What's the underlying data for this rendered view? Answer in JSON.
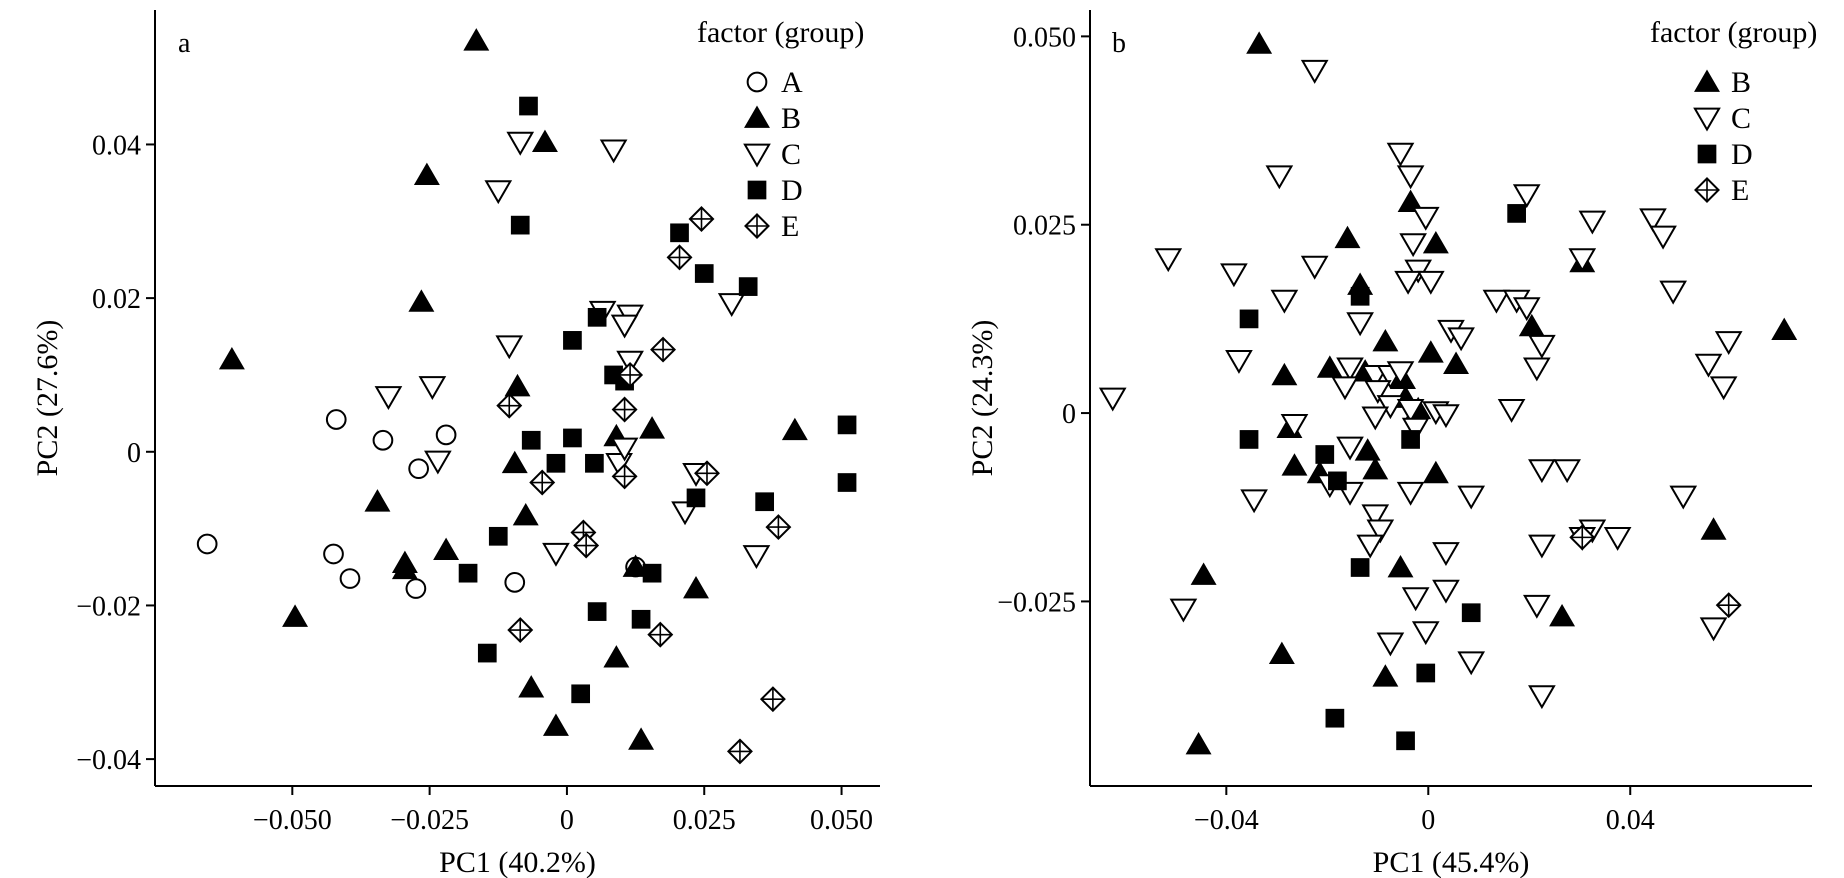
{
  "chart_data": [
    {
      "type": "scatter",
      "panel_tag": "a",
      "xlabel": "PC1 (40.2%)",
      "ylabel": "PC2 (27.6%)",
      "xlim": [
        -0.075,
        0.057
      ],
      "ylim": [
        -0.0435,
        0.0575
      ],
      "xticks": [
        -0.05,
        -0.025,
        0,
        0.025,
        0.05
      ],
      "xtick_labels": [
        "−0.050",
        "−0.025",
        "0",
        "0.025",
        "0.050"
      ],
      "yticks": [
        -0.04,
        -0.02,
        0,
        0.02,
        0.04
      ],
      "ytick_labels": [
        "−0.04",
        "−0.02",
        "0",
        "0.02",
        "0.04"
      ],
      "grid": false,
      "legend": {
        "title": "factor (group)",
        "placement": "top-right"
      },
      "series": [
        {
          "name": "A",
          "marker": "open-circle",
          "points": [
            [
              -0.0655,
              -0.012
            ],
            [
              -0.042,
              0.0042
            ],
            [
              -0.0335,
              0.0015
            ],
            [
              -0.022,
              0.0022
            ],
            [
              -0.027,
              -0.0022
            ],
            [
              -0.0425,
              -0.0133
            ],
            [
              -0.0395,
              -0.0165
            ],
            [
              -0.0275,
              -0.0178
            ],
            [
              -0.0095,
              -0.017
            ],
            [
              0.0125,
              -0.015
            ]
          ]
        },
        {
          "name": "B",
          "marker": "filled-triangle-up",
          "points": [
            [
              -0.0165,
              0.0535
            ],
            [
              -0.004,
              0.0403
            ],
            [
              -0.0255,
              0.036
            ],
            [
              -0.0265,
              0.0195
            ],
            [
              -0.061,
              0.012
            ],
            [
              -0.009,
              0.0085
            ],
            [
              -0.0095,
              -0.0015
            ],
            [
              -0.0345,
              -0.0065
            ],
            [
              -0.0075,
              -0.0083
            ],
            [
              -0.0295,
              -0.0145
            ],
            [
              -0.022,
              -0.0128
            ],
            [
              -0.0295,
              -0.0153
            ],
            [
              -0.0495,
              -0.0215
            ],
            [
              -0.0065,
              -0.0307
            ],
            [
              -0.002,
              -0.0357
            ],
            [
              0.009,
              0.002
            ],
            [
              0.0155,
              0.003
            ],
            [
              0.0415,
              0.0028
            ],
            [
              0.0125,
              -0.015
            ],
            [
              0.0235,
              -0.0178
            ],
            [
              0.009,
              -0.0268
            ],
            [
              0.0135,
              -0.0375
            ]
          ]
        },
        {
          "name": "C",
          "marker": "open-triangle-down",
          "points": [
            [
              -0.0085,
              0.0403
            ],
            [
              0.0085,
              0.0393
            ],
            [
              -0.0125,
              0.034
            ],
            [
              -0.0325,
              0.0072
            ],
            [
              -0.0245,
              0.0085
            ],
            [
              -0.0105,
              0.0138
            ],
            [
              0.0065,
              0.0183
            ],
            [
              0.0115,
              0.0178
            ],
            [
              0.0105,
              0.0165
            ],
            [
              0.0115,
              0.0118
            ],
            [
              0.03,
              0.0193
            ],
            [
              -0.0235,
              -0.0012
            ],
            [
              0.0095,
              -0.0015
            ],
            [
              0.0105,
              0.0005
            ],
            [
              -0.002,
              -0.0132
            ],
            [
              0.0215,
              -0.0078
            ],
            [
              0.0235,
              -0.0028
            ],
            [
              0.0345,
              -0.0135
            ]
          ]
        },
        {
          "name": "D",
          "marker": "filled-square",
          "points": [
            [
              -0.007,
              0.045
            ],
            [
              -0.0085,
              0.0295
            ],
            [
              0.0205,
              0.0285
            ],
            [
              0.025,
              0.0232
            ],
            [
              0.033,
              0.0215
            ],
            [
              0.0055,
              0.0175
            ],
            [
              0.001,
              0.0145
            ],
            [
              0.0085,
              0.01
            ],
            [
              0.0105,
              0.0092
            ],
            [
              -0.0065,
              0.0015
            ],
            [
              0.001,
              0.0018
            ],
            [
              -0.002,
              -0.0015
            ],
            [
              0.005,
              -0.0015
            ],
            [
              -0.0125,
              -0.011
            ],
            [
              0.0235,
              -0.006
            ],
            [
              0.036,
              -0.0065
            ],
            [
              0.051,
              0.0035
            ],
            [
              0.051,
              -0.004
            ],
            [
              -0.018,
              -0.0158
            ],
            [
              0.0155,
              -0.0158
            ],
            [
              0.0055,
              -0.0208
            ],
            [
              0.0135,
              -0.0218
            ],
            [
              -0.0145,
              -0.0262
            ],
            [
              0.0025,
              -0.0315
            ]
          ]
        },
        {
          "name": "E",
          "marker": "crossed-diamond",
          "points": [
            [
              0.0245,
              0.0303
            ],
            [
              0.0205,
              0.0253
            ],
            [
              0.0175,
              0.0133
            ],
            [
              0.0115,
              0.01
            ],
            [
              -0.0105,
              0.006
            ],
            [
              0.0105,
              0.0055
            ],
            [
              -0.0045,
              -0.004
            ],
            [
              0.0105,
              -0.0032
            ],
            [
              0.0255,
              -0.0028
            ],
            [
              0.003,
              -0.0105
            ],
            [
              0.0035,
              -0.0122
            ],
            [
              0.0385,
              -0.0098
            ],
            [
              -0.0085,
              -0.0232
            ],
            [
              0.017,
              -0.0238
            ],
            [
              0.0375,
              -0.0322
            ],
            [
              0.0315,
              -0.039
            ]
          ]
        }
      ]
    },
    {
      "type": "scatter",
      "panel_tag": "b",
      "xlabel": "PC1 (45.4%)",
      "ylabel": "PC2 (24.3%)",
      "xlim": [
        -0.067,
        0.076
      ],
      "ylim": [
        -0.0495,
        0.0535
      ],
      "xticks": [
        -0.04,
        0,
        0.04
      ],
      "xtick_labels": [
        "−0.04",
        "0",
        "0.04"
      ],
      "yticks": [
        -0.025,
        0,
        0.025,
        0.05
      ],
      "ytick_labels": [
        "−0.025",
        "0",
        "0.025",
        "0.050"
      ],
      "grid": false,
      "legend": {
        "title": "factor (group)",
        "placement": "top-right"
      },
      "series": [
        {
          "name": "B",
          "marker": "filled-triangle-up",
          "points": [
            [
              -0.0335,
              0.049
            ],
            [
              -0.016,
              0.0232
            ],
            [
              -0.0135,
              0.017
            ],
            [
              -0.0035,
              0.028
            ],
            [
              0.0015,
              0.0225
            ],
            [
              0.0305,
              0.02
            ],
            [
              0.0205,
              0.0115
            ],
            [
              0.0705,
              0.011
            ],
            [
              -0.0285,
              0.005
            ],
            [
              -0.0195,
              0.006
            ],
            [
              -0.0085,
              0.0095
            ],
            [
              -0.0125,
              0.0055
            ],
            [
              -0.005,
              0.0045
            ],
            [
              0.0005,
              0.008
            ],
            [
              0.0055,
              0.0065
            ],
            [
              -0.0045,
              0.002
            ],
            [
              -0.002,
              0.0005
            ],
            [
              -0.0275,
              -0.002
            ],
            [
              -0.0265,
              -0.007
            ],
            [
              -0.0215,
              -0.008
            ],
            [
              -0.0105,
              -0.0075
            ],
            [
              -0.012,
              -0.005
            ],
            [
              0.0015,
              -0.008
            ],
            [
              -0.0055,
              -0.0205
            ],
            [
              -0.0445,
              -0.0215
            ],
            [
              -0.029,
              -0.032
            ],
            [
              -0.0085,
              -0.035
            ],
            [
              0.0265,
              -0.027
            ],
            [
              0.0565,
              -0.0155
            ],
            [
              -0.0455,
              -0.044
            ]
          ]
        },
        {
          "name": "C",
          "marker": "open-triangle-down",
          "points": [
            [
              -0.0225,
              0.0455
            ],
            [
              -0.0055,
              0.0345
            ],
            [
              -0.0295,
              0.0315
            ],
            [
              -0.0035,
              0.0315
            ],
            [
              0.0195,
              0.029
            ],
            [
              -0.0515,
              0.0205
            ],
            [
              -0.0225,
              0.0195
            ],
            [
              -0.0385,
              0.0185
            ],
            [
              -0.003,
              0.0225
            ],
            [
              -0.0005,
              0.026
            ],
            [
              0.0445,
              0.0258
            ],
            [
              0.0325,
              0.0255
            ],
            [
              0.0465,
              0.0235
            ],
            [
              0.0305,
              0.0205
            ],
            [
              -0.002,
              0.019
            ],
            [
              -0.004,
              0.0175
            ],
            [
              0.0005,
              0.0175
            ],
            [
              -0.0285,
              0.015
            ],
            [
              0.0135,
              0.015
            ],
            [
              0.0175,
              0.015
            ],
            [
              0.0195,
              0.014
            ],
            [
              0.0485,
              0.0162
            ],
            [
              -0.0135,
              0.012
            ],
            [
              0.0045,
              0.011
            ],
            [
              0.0065,
              0.01
            ],
            [
              0.0225,
              0.009
            ],
            [
              0.0595,
              0.0095
            ],
            [
              -0.0375,
              0.007
            ],
            [
              -0.0155,
              0.006
            ],
            [
              -0.0105,
              0.005
            ],
            [
              -0.0075,
              0.005
            ],
            [
              -0.0055,
              0.0055
            ],
            [
              -0.0165,
              0.0035
            ],
            [
              -0.01,
              0.003
            ],
            [
              0.0215,
              0.006
            ],
            [
              0.0555,
              0.0065
            ],
            [
              0.0585,
              0.0035
            ],
            [
              -0.0625,
              0.002
            ],
            [
              -0.0075,
              0.001
            ],
            [
              -0.0035,
              0.0005
            ],
            [
              0.0015,
              0.0002
            ],
            [
              0.0035,
              -0.0002
            ],
            [
              -0.0105,
              -0.0005
            ],
            [
              -0.0025,
              -0.002
            ],
            [
              -0.0265,
              -0.0015
            ],
            [
              0.0165,
              0.0005
            ],
            [
              -0.0155,
              -0.0045
            ],
            [
              -0.0345,
              -0.0115
            ],
            [
              -0.0195,
              -0.0095
            ],
            [
              -0.0155,
              -0.0105
            ],
            [
              -0.0105,
              -0.0135
            ],
            [
              -0.0095,
              -0.0155
            ],
            [
              -0.0115,
              -0.0175
            ],
            [
              -0.0035,
              -0.0105
            ],
            [
              0.0085,
              -0.011
            ],
            [
              0.0225,
              -0.0075
            ],
            [
              0.0275,
              -0.0075
            ],
            [
              0.0505,
              -0.011
            ],
            [
              0.0325,
              -0.0155
            ],
            [
              0.0375,
              -0.0165
            ],
            [
              0.0305,
              -0.0165
            ],
            [
              0.0225,
              -0.0175
            ],
            [
              0.0035,
              -0.0185
            ],
            [
              -0.0025,
              -0.0245
            ],
            [
              0.0035,
              -0.0235
            ],
            [
              -0.0485,
              -0.026
            ],
            [
              0.0215,
              -0.0255
            ],
            [
              -0.0005,
              -0.029
            ],
            [
              -0.0075,
              -0.0305
            ],
            [
              0.0085,
              -0.033
            ],
            [
              0.0225,
              -0.0375
            ],
            [
              0.0565,
              -0.0285
            ]
          ]
        },
        {
          "name": "D",
          "marker": "filled-square",
          "points": [
            [
              0.0175,
              0.0265
            ],
            [
              -0.0135,
              0.0155
            ],
            [
              -0.0355,
              0.0125
            ],
            [
              -0.0355,
              -0.0035
            ],
            [
              -0.0205,
              -0.0055
            ],
            [
              -0.018,
              -0.009
            ],
            [
              -0.0035,
              -0.0035
            ],
            [
              -0.0135,
              -0.0205
            ],
            [
              0.0085,
              -0.0265
            ],
            [
              -0.0005,
              -0.0345
            ],
            [
              -0.0185,
              -0.0405
            ],
            [
              -0.0045,
              -0.0435
            ]
          ]
        },
        {
          "name": "E",
          "marker": "crossed-diamond",
          "points": [
            [
              0.0305,
              -0.0165
            ],
            [
              0.0595,
              -0.0255
            ]
          ]
        }
      ]
    }
  ]
}
